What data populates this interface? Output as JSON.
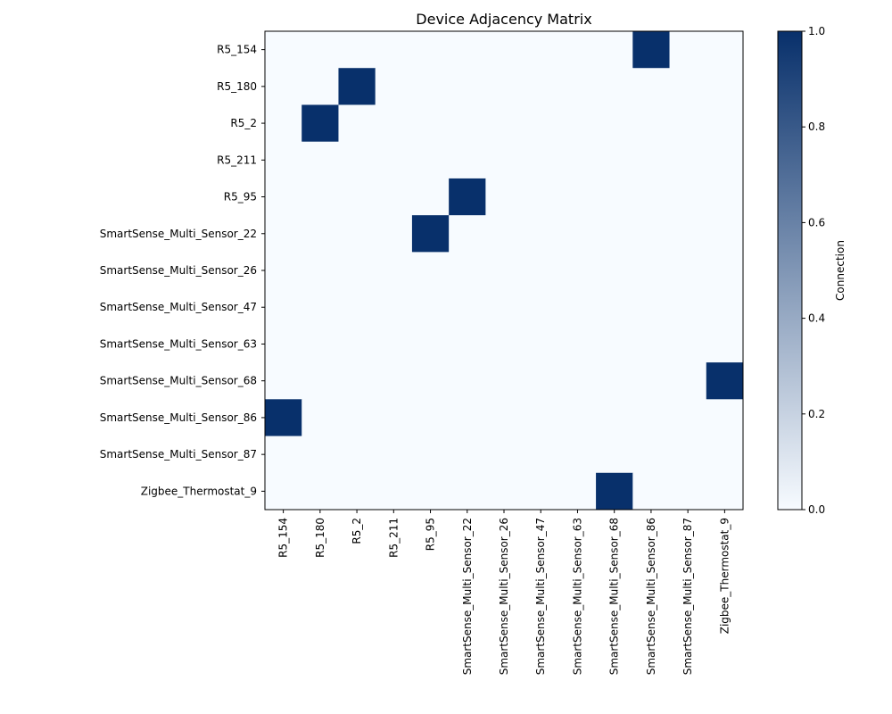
{
  "chart_data": {
    "type": "heatmap",
    "title": "Device Adjacency Matrix",
    "colormap": "Blues",
    "colors": {
      "low": "#f7fbff",
      "high": "#08306b"
    },
    "rows": [
      "R5_154",
      "R5_180",
      "R5_2",
      "R5_211",
      "R5_95",
      "SmartSense_Multi_Sensor_22",
      "SmartSense_Multi_Sensor_26",
      "SmartSense_Multi_Sensor_47",
      "SmartSense_Multi_Sensor_63",
      "SmartSense_Multi_Sensor_68",
      "SmartSense_Multi_Sensor_86",
      "SmartSense_Multi_Sensor_87",
      "Zigbee_Thermostat_9"
    ],
    "columns": [
      "R5_154",
      "R5_180",
      "R5_2",
      "R5_211",
      "R5_95",
      "SmartSense_Multi_Sensor_22",
      "SmartSense_Multi_Sensor_26",
      "SmartSense_Multi_Sensor_47",
      "SmartSense_Multi_Sensor_63",
      "SmartSense_Multi_Sensor_68",
      "SmartSense_Multi_Sensor_86",
      "SmartSense_Multi_Sensor_87",
      "Zigbee_Thermostat_9"
    ],
    "values": [
      [
        0,
        0,
        0,
        0,
        0,
        0,
        0,
        0,
        0,
        0,
        1,
        0,
        0
      ],
      [
        0,
        0,
        1,
        0,
        0,
        0,
        0,
        0,
        0,
        0,
        0,
        0,
        0
      ],
      [
        0,
        1,
        0,
        0,
        0,
        0,
        0,
        0,
        0,
        0,
        0,
        0,
        0
      ],
      [
        0,
        0,
        0,
        0,
        0,
        0,
        0,
        0,
        0,
        0,
        0,
        0,
        0
      ],
      [
        0,
        0,
        0,
        0,
        0,
        1,
        0,
        0,
        0,
        0,
        0,
        0,
        0
      ],
      [
        0,
        0,
        0,
        0,
        1,
        0,
        0,
        0,
        0,
        0,
        0,
        0,
        0
      ],
      [
        0,
        0,
        0,
        0,
        0,
        0,
        0,
        0,
        0,
        0,
        0,
        0,
        0
      ],
      [
        0,
        0,
        0,
        0,
        0,
        0,
        0,
        0,
        0,
        0,
        0,
        0,
        0
      ],
      [
        0,
        0,
        0,
        0,
        0,
        0,
        0,
        0,
        0,
        0,
        0,
        0,
        0
      ],
      [
        0,
        0,
        0,
        0,
        0,
        0,
        0,
        0,
        0,
        0,
        0,
        0,
        1
      ],
      [
        1,
        0,
        0,
        0,
        0,
        0,
        0,
        0,
        0,
        0,
        0,
        0,
        0
      ],
      [
        0,
        0,
        0,
        0,
        0,
        0,
        0,
        0,
        0,
        0,
        0,
        0,
        0
      ],
      [
        0,
        0,
        0,
        0,
        0,
        0,
        0,
        0,
        0,
        1,
        0,
        0,
        0
      ]
    ],
    "colorbar": {
      "label": "Connection",
      "range": [
        0,
        1
      ],
      "ticks": [
        0.0,
        0.2,
        0.4,
        0.6,
        0.8,
        1.0
      ],
      "tick_labels": [
        "0.0",
        "0.2",
        "0.4",
        "0.6",
        "0.8",
        "1.0"
      ]
    },
    "grid": false
  }
}
